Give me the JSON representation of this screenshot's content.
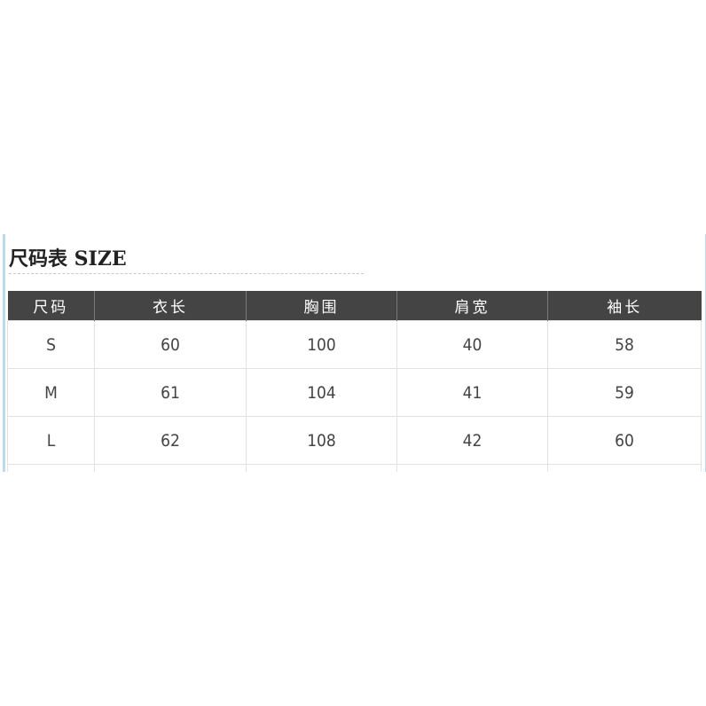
{
  "title": "尺码表 SIZE",
  "table": {
    "headers": [
      "尺码",
      "衣长",
      "胸围",
      "肩宽",
      "袖长"
    ],
    "rows": [
      [
        "S",
        "60",
        "100",
        "40",
        "58"
      ],
      [
        "M",
        "61",
        "104",
        "41",
        "59"
      ],
      [
        "L",
        "62",
        "108",
        "42",
        "60"
      ]
    ]
  },
  "colors": {
    "header_bg": "#444444",
    "frame_accent": "#bcd9ee"
  }
}
